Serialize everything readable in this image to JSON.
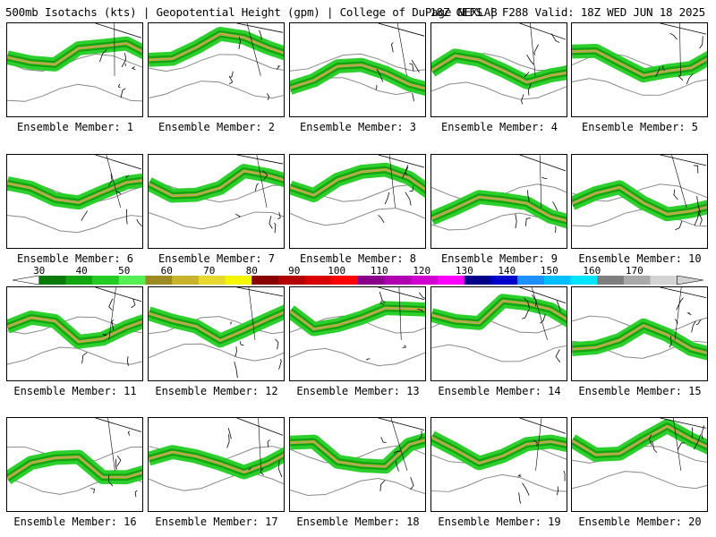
{
  "header": {
    "left": "500mb Isotachs (kts) | Geopotential Height (gpm) | College of DuPage NEXLAB",
    "right": "18Z GEFS | F288 Valid: 18Z WED JUN 18 2025"
  },
  "panels": [
    {
      "label": "Ensemble Member: 1"
    },
    {
      "label": "Ensemble Member: 2"
    },
    {
      "label": "Ensemble Member: 3"
    },
    {
      "label": "Ensemble Member: 4"
    },
    {
      "label": "Ensemble Member: 5"
    },
    {
      "label": "Ensemble Member: 6"
    },
    {
      "label": "Ensemble Member: 7"
    },
    {
      "label": "Ensemble Member: 8"
    },
    {
      "label": "Ensemble Member: 9"
    },
    {
      "label": "Ensemble Member: 10"
    },
    {
      "label": "Ensemble Member: 11"
    },
    {
      "label": "Ensemble Member: 12"
    },
    {
      "label": "Ensemble Member: 13"
    },
    {
      "label": "Ensemble Member: 14"
    },
    {
      "label": "Ensemble Member: 15"
    },
    {
      "label": "Ensemble Member: 16"
    },
    {
      "label": "Ensemble Member: 17"
    },
    {
      "label": "Ensemble Member: 18"
    },
    {
      "label": "Ensemble Member: 19"
    },
    {
      "label": "Ensemble Member: 20"
    }
  ],
  "colorbar": {
    "ticks": [
      "30",
      "40",
      "50",
      "60",
      "70",
      "80",
      "90",
      "100",
      "110",
      "120",
      "130",
      "140",
      "150",
      "160",
      "170"
    ],
    "colors": [
      "#0a7a0a",
      "#11a611",
      "#22cc22",
      "#55ee55",
      "#9c8a22",
      "#c8b42a",
      "#e6d82e",
      "#f5f500",
      "#8b0000",
      "#b30000",
      "#d90000",
      "#ff0000",
      "#8b008b",
      "#b000b0",
      "#d000d0",
      "#ff00ff",
      "#00008b",
      "#0000cd",
      "#1e90ff",
      "#00bfff",
      "#00e5ff",
      "#7f7f7f",
      "#a9a9a9",
      "#d3d3d3"
    ]
  }
}
